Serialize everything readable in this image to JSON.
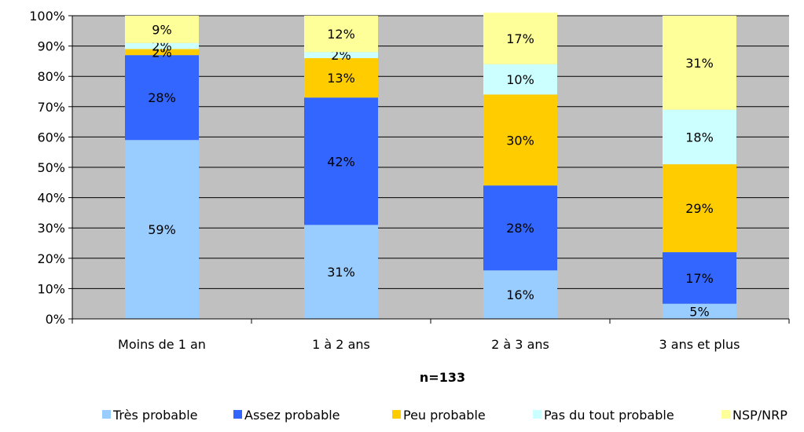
{
  "colors": {
    "plot_background": "#C0C0C0",
    "gridline": "#000000",
    "series": [
      "#99CCFF",
      "#3366FF",
      "#FFCC00",
      "#CCFFFF",
      "#FFFF99"
    ]
  },
  "chart_data": {
    "type": "bar",
    "stacked": true,
    "percent_stacked": true,
    "categories": [
      "Moins de 1 an",
      "1 à 2 ans",
      "2 à 3 ans",
      "3 ans et plus"
    ],
    "series": [
      {
        "name": "Très probable",
        "values": [
          59,
          31,
          16,
          5
        ]
      },
      {
        "name": "Assez probable",
        "values": [
          28,
          42,
          28,
          17
        ]
      },
      {
        "name": "Peu probable",
        "values": [
          2,
          13,
          30,
          29
        ]
      },
      {
        "name": "Pas du tout probable",
        "values": [
          2,
          2,
          10,
          18
        ]
      },
      {
        "name": "NSP/NRP",
        "values": [
          9,
          12,
          17,
          31
        ]
      }
    ],
    "data_labels": [
      [
        "59%",
        "31%",
        "16%",
        "5%"
      ],
      [
        "28%",
        "42%",
        "28%",
        "17%"
      ],
      [
        "2%",
        "13%",
        "30%",
        "29%"
      ],
      [
        "2%",
        "2%",
        "10%",
        "18%"
      ],
      [
        "9%",
        "12%",
        "17%",
        "31%"
      ]
    ],
    "ylim": [
      0,
      100
    ],
    "y_ticks": [
      0,
      10,
      20,
      30,
      40,
      50,
      60,
      70,
      80,
      90,
      100
    ],
    "y_tick_labels": [
      "0%",
      "10%",
      "20%",
      "30%",
      "40%",
      "50%",
      "60%",
      "70%",
      "80%",
      "90%",
      "100%"
    ],
    "xlabel": "n=133",
    "ylabel": "",
    "title": "",
    "grid": true,
    "legend_position": "bottom"
  }
}
